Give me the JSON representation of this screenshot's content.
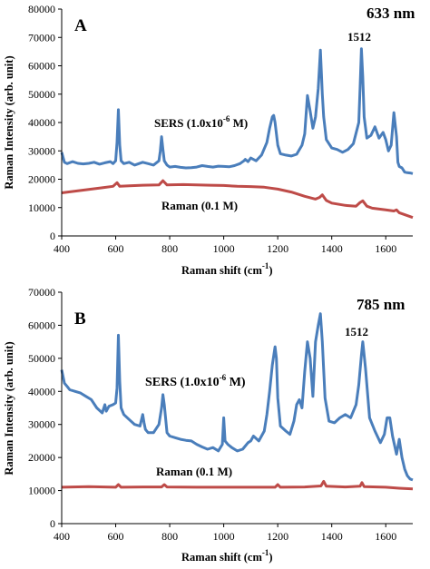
{
  "chart_data": [
    {
      "type": "line",
      "panel": "A",
      "wavelength": "633 nm",
      "xlabel": "Raman shift (cm",
      "xlabel_sup": "-1",
      "xlabel_tail": ")",
      "ylabel": "Raman Intensity (arb. unit)",
      "xlim": [
        400,
        1700
      ],
      "ylim": [
        0,
        80000
      ],
      "xticks": [
        400,
        600,
        800,
        1000,
        1200,
        1400,
        1600
      ],
      "xtick_labels": [
        "400",
        "600",
        "800",
        "1000",
        "1200",
        "1400",
        "1600"
      ],
      "yticks": [
        0,
        10000,
        20000,
        30000,
        40000,
        50000,
        60000,
        70000,
        80000
      ],
      "ytick_labels": [
        "0",
        "10000",
        "20000",
        "30000",
        "40000",
        "50000",
        "60000",
        "70000",
        "80000"
      ],
      "peak_label": "1512",
      "series": [
        {
          "name": "SERS (1.0x10-6 M)",
          "label_main": "SERS (1.0x10",
          "label_sup": "-6",
          "label_tail": " M)",
          "color": "#4a7ebb",
          "x": [
            400,
            410,
            420,
            440,
            460,
            480,
            500,
            520,
            540,
            560,
            580,
            590,
            600,
            605,
            610,
            615,
            620,
            630,
            650,
            670,
            700,
            720,
            740,
            760,
            765,
            770,
            775,
            780,
            790,
            800,
            820,
            840,
            860,
            880,
            900,
            920,
            940,
            960,
            980,
            1000,
            1020,
            1040,
            1060,
            1075,
            1080,
            1090,
            1100,
            1120,
            1140,
            1160,
            1170,
            1180,
            1185,
            1190,
            1200,
            1210,
            1230,
            1250,
            1270,
            1290,
            1300,
            1310,
            1320,
            1330,
            1340,
            1350,
            1358,
            1365,
            1370,
            1380,
            1400,
            1420,
            1440,
            1460,
            1480,
            1500,
            1505,
            1510,
            1515,
            1520,
            1530,
            1545,
            1560,
            1575,
            1590,
            1600,
            1610,
            1620,
            1630,
            1640,
            1645,
            1650,
            1660,
            1670,
            1680,
            1690,
            1700
          ],
          "y": [
            29500,
            26000,
            25500,
            26200,
            25600,
            25400,
            25600,
            26000,
            25300,
            25800,
            26200,
            25500,
            26500,
            33000,
            44500,
            32000,
            26500,
            25500,
            26000,
            25000,
            26000,
            25500,
            25000,
            26500,
            30000,
            35000,
            30500,
            26500,
            25000,
            24300,
            24500,
            24200,
            24000,
            24100,
            24300,
            24800,
            24500,
            24300,
            24600,
            24500,
            24400,
            24800,
            25500,
            26500,
            27000,
            26200,
            27500,
            26500,
            28500,
            33000,
            38000,
            42000,
            42500,
            40000,
            32000,
            29000,
            28500,
            28200,
            28800,
            32000,
            36000,
            49500,
            44000,
            38000,
            42000,
            52000,
            65500,
            50000,
            42000,
            34000,
            31000,
            30500,
            29500,
            30500,
            32500,
            40000,
            52000,
            66000,
            56000,
            42000,
            34500,
            35500,
            38500,
            34500,
            36500,
            34000,
            30000,
            32000,
            43500,
            35000,
            26000,
            24500,
            24000,
            22500,
            22300,
            22200,
            22000
          ]
        },
        {
          "name": "Raman (0.1 M)",
          "label_main": "Raman (0.1 M)",
          "color": "#be4b48",
          "x": [
            400,
            450,
            500,
            550,
            590,
            605,
            615,
            650,
            700,
            760,
            775,
            790,
            850,
            900,
            950,
            1000,
            1050,
            1100,
            1150,
            1200,
            1250,
            1300,
            1340,
            1355,
            1365,
            1380,
            1400,
            1450,
            1490,
            1505,
            1515,
            1530,
            1550,
            1600,
            1630,
            1640,
            1650,
            1700
          ],
          "y": [
            15200,
            15800,
            16400,
            17000,
            17500,
            18800,
            17500,
            17700,
            17900,
            18000,
            19500,
            18000,
            18100,
            18000,
            17900,
            17800,
            17500,
            17400,
            17200,
            16500,
            15500,
            14000,
            13000,
            13600,
            14500,
            12500,
            11600,
            10800,
            10500,
            11800,
            12400,
            10500,
            9800,
            9200,
            8800,
            9200,
            8200,
            6500
          ]
        }
      ]
    },
    {
      "type": "line",
      "panel": "B",
      "wavelength": "785 nm",
      "xlabel": "Raman shift (cm",
      "xlabel_sup": "-1",
      "xlabel_tail": ")",
      "ylabel": "Raman Intensity (arb. unit)",
      "xlim": [
        400,
        1700
      ],
      "ylim": [
        0,
        70000
      ],
      "xticks": [
        400,
        600,
        800,
        1000,
        1200,
        1400,
        1600
      ],
      "xtick_labels": [
        "400",
        "600",
        "800",
        "1000",
        "1200",
        "1400",
        "1600"
      ],
      "yticks": [
        0,
        10000,
        20000,
        30000,
        40000,
        50000,
        60000,
        70000
      ],
      "ytick_labels": [
        "0",
        "10000",
        "20000",
        "30000",
        "40000",
        "50000",
        "60000",
        "70000"
      ],
      "peak_label": "1512",
      "series": [
        {
          "name": "SERS (1.0x10-6 M)",
          "label_main": "SERS (1.0x10",
          "label_sup": "-6",
          "label_tail": " M)",
          "color": "#4a7ebb",
          "x": [
            400,
            410,
            420,
            430,
            450,
            470,
            490,
            510,
            530,
            550,
            560,
            565,
            575,
            590,
            600,
            605,
            610,
            615,
            620,
            630,
            650,
            670,
            690,
            700,
            705,
            710,
            720,
            740,
            760,
            770,
            775,
            780,
            790,
            800,
            820,
            840,
            860,
            880,
            900,
            920,
            940,
            960,
            980,
            995,
            1000,
            1005,
            1015,
            1030,
            1050,
            1070,
            1090,
            1100,
            1110,
            1130,
            1150,
            1160,
            1170,
            1180,
            1190,
            1195,
            1200,
            1210,
            1230,
            1245,
            1260,
            1270,
            1280,
            1290,
            1300,
            1310,
            1320,
            1330,
            1340,
            1350,
            1358,
            1365,
            1375,
            1390,
            1410,
            1430,
            1450,
            1470,
            1490,
            1500,
            1510,
            1515,
            1525,
            1540,
            1560,
            1580,
            1595,
            1605,
            1615,
            1625,
            1640,
            1650,
            1660,
            1670,
            1680,
            1690,
            1700
          ],
          "y": [
            46500,
            42500,
            41500,
            40500,
            40000,
            39500,
            38500,
            37500,
            35000,
            33500,
            36000,
            34000,
            35500,
            36000,
            36500,
            41000,
            57000,
            43000,
            35000,
            33000,
            31500,
            30000,
            29500,
            33000,
            30500,
            28500,
            27500,
            27500,
            30000,
            35000,
            39000,
            36000,
            27500,
            26500,
            26000,
            25500,
            25200,
            25000,
            24000,
            23200,
            22500,
            23000,
            22000,
            24000,
            32000,
            25000,
            24000,
            23000,
            22000,
            22500,
            24500,
            25000,
            26500,
            25000,
            28000,
            33000,
            40000,
            48000,
            53500,
            50000,
            38000,
            29500,
            28000,
            27000,
            31000,
            36000,
            37500,
            35000,
            46000,
            55000,
            50000,
            38500,
            55000,
            60000,
            63500,
            55000,
            38000,
            31000,
            30500,
            32000,
            33000,
            32000,
            36000,
            42000,
            51000,
            55000,
            47000,
            32000,
            28000,
            24500,
            27000,
            32000,
            32000,
            26500,
            21000,
            25500,
            20000,
            16500,
            14500,
            13500,
            13200
          ]
        },
        {
          "name": "Raman (0.1 M)",
          "label_main": "Raman (0.1 M)",
          "color": "#be4b48",
          "x": [
            400,
            500,
            600,
            610,
            620,
            700,
            770,
            780,
            790,
            900,
            1000,
            1100,
            1190,
            1200,
            1210,
            1300,
            1360,
            1370,
            1380,
            1450,
            1505,
            1512,
            1520,
            1600,
            1650,
            1700
          ],
          "y": [
            11000,
            11200,
            11000,
            11800,
            11000,
            11100,
            11100,
            11800,
            11100,
            11000,
            11000,
            11000,
            11000,
            11800,
            11000,
            11100,
            11400,
            12800,
            11300,
            11100,
            11300,
            12400,
            11200,
            11000,
            10700,
            10500
          ]
        }
      ]
    }
  ]
}
